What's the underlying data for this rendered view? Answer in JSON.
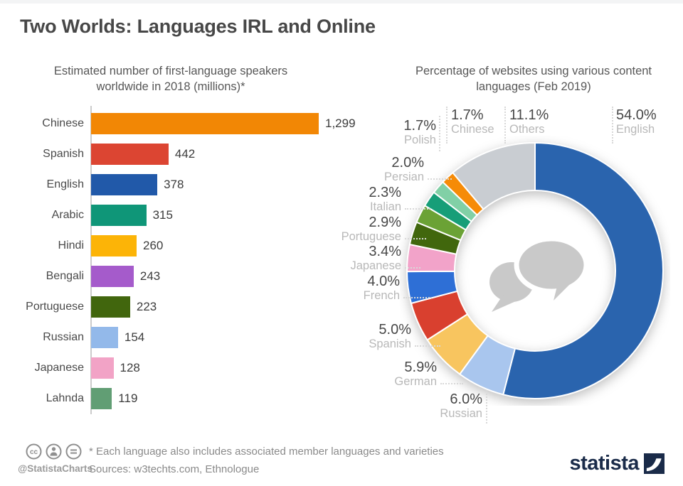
{
  "title": "Two Worlds: Languages IRL and Online",
  "left_chart": {
    "subtitle": "Estimated number of first-language speakers worldwide in 2018 (millions)*"
  },
  "right_chart": {
    "subtitle": "Percentage of websites using various content languages (Feb 2019)"
  },
  "chart_data": [
    {
      "type": "bar",
      "orientation": "horizontal",
      "title": "Estimated number of first-language speakers worldwide in 2018 (millions)*",
      "categories": [
        "Chinese",
        "Spanish",
        "English",
        "Arabic",
        "Hindi",
        "Bengali",
        "Portuguese",
        "Russian",
        "Japanese",
        "Lahnda"
      ],
      "values": [
        1299,
        442,
        378,
        315,
        260,
        243,
        223,
        154,
        128,
        119
      ],
      "value_labels": [
        "1,299",
        "442",
        "378",
        "315",
        "260",
        "243",
        "223",
        "154",
        "128",
        "119"
      ],
      "colors": [
        "#F28705",
        "#DC4532",
        "#2159A9",
        "#0F9678",
        "#FCB407",
        "#A55BCB",
        "#41660D",
        "#93B9EA",
        "#F2A3C6",
        "#619E74"
      ],
      "xlim": [
        0,
        1299
      ],
      "unit": "millions"
    },
    {
      "type": "pie",
      "subtype": "donut",
      "title": "Percentage of websites using various content languages (Feb 2019)",
      "start_angle_deg_from_top_clockwise": 0,
      "slices": [
        {
          "name": "English",
          "label": "54.0%",
          "value": 54.0,
          "color": "#2A64AE"
        },
        {
          "name": "Russian",
          "label": "6.0%",
          "value": 6.0,
          "color": "#A9C6EE"
        },
        {
          "name": "German",
          "label": "5.9%",
          "value": 5.9,
          "color": "#F8C55F"
        },
        {
          "name": "Spanish",
          "label": "5.0%",
          "value": 5.0,
          "color": "#D9402F"
        },
        {
          "name": "French",
          "label": "4.0%",
          "value": 4.0,
          "color": "#2E6FD6"
        },
        {
          "name": "Japanese",
          "label": "3.4%",
          "value": 3.4,
          "color": "#F2A3C9"
        },
        {
          "name": "Portuguese",
          "label": "2.9%",
          "value": 2.9,
          "color": "#41670D"
        },
        {
          "name": "Italian",
          "label": "2.3%",
          "value": 2.3,
          "color": "#6BA235"
        },
        {
          "name": "Persian",
          "label": "2.0%",
          "value": 2.0,
          "color": "#179E78"
        },
        {
          "name": "Polish",
          "label": "1.7%",
          "value": 1.7,
          "color": "#81D0A6"
        },
        {
          "name": "Chinese",
          "label": "1.7%",
          "value": 1.7,
          "color": "#F68B07"
        },
        {
          "name": "Others",
          "label": "11.1%",
          "value": 11.1,
          "color": "#C9CDD2"
        }
      ]
    }
  ],
  "icons": {
    "center_icon": "speech-bubbles-icon",
    "license_icons": [
      "cc-icon",
      "attribution-person-icon",
      "equals-icon"
    ]
  },
  "footer": {
    "handle": "@StatistaCharts",
    "footnote": "* Each language also includes associated member languages and varieties",
    "sources": "Sources: w3techts.com, Ethnologue",
    "brand": "statista"
  }
}
